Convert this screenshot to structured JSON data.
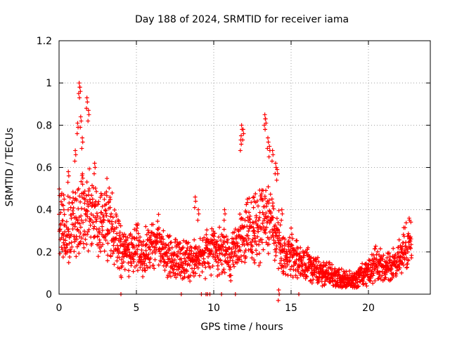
{
  "chart_data": {
    "type": "scatter",
    "title": "Day 188 of 2024, SRMTID for receiver iama",
    "xlabel": "GPS time / hours",
    "ylabel": "SRMTID / TECUs",
    "xlim": [
      0,
      24
    ],
    "ylim": [
      0,
      1.2
    ],
    "xticks": [
      0,
      5,
      10,
      15,
      20
    ],
    "xtick_labels": [
      "0",
      "5",
      "10",
      "15",
      "20"
    ],
    "yticks": [
      0,
      0.2,
      0.4,
      0.6,
      0.8,
      1,
      1.2
    ],
    "ytick_labels": [
      "0",
      "0.2",
      "0.4",
      "0.6",
      "0.8",
      "1",
      "1.2"
    ],
    "grid": true,
    "marker": "+",
    "color": "#ff0000",
    "trend": [
      [
        0.0,
        0.35
      ],
      [
        0.5,
        0.3
      ],
      [
        1.0,
        0.33
      ],
      [
        1.5,
        0.4
      ],
      [
        2.0,
        0.37
      ],
      [
        2.5,
        0.32
      ],
      [
        3.0,
        0.36
      ],
      [
        3.5,
        0.3
      ],
      [
        4.0,
        0.2
      ],
      [
        4.5,
        0.2
      ],
      [
        5.0,
        0.22
      ],
      [
        5.5,
        0.2
      ],
      [
        6.0,
        0.24
      ],
      [
        6.5,
        0.27
      ],
      [
        7.0,
        0.18
      ],
      [
        7.5,
        0.17
      ],
      [
        8.0,
        0.16
      ],
      [
        8.5,
        0.17
      ],
      [
        9.0,
        0.18
      ],
      [
        9.5,
        0.19
      ],
      [
        10.0,
        0.2
      ],
      [
        10.5,
        0.22
      ],
      [
        11.0,
        0.17
      ],
      [
        11.5,
        0.22
      ],
      [
        12.0,
        0.28
      ],
      [
        12.5,
        0.3
      ],
      [
        13.0,
        0.32
      ],
      [
        13.5,
        0.38
      ],
      [
        14.0,
        0.3
      ],
      [
        14.5,
        0.18
      ],
      [
        15.0,
        0.2
      ],
      [
        15.5,
        0.17
      ],
      [
        16.0,
        0.14
      ],
      [
        16.5,
        0.12
      ],
      [
        17.0,
        0.1
      ],
      [
        17.5,
        0.09
      ],
      [
        18.0,
        0.07
      ],
      [
        18.5,
        0.06
      ],
      [
        19.0,
        0.06
      ],
      [
        19.5,
        0.08
      ],
      [
        20.0,
        0.1
      ],
      [
        20.5,
        0.14
      ],
      [
        21.0,
        0.12
      ],
      [
        21.5,
        0.13
      ],
      [
        22.0,
        0.17
      ],
      [
        22.5,
        0.23
      ],
      [
        22.8,
        0.26
      ]
    ],
    "spikes": [
      {
        "x": 0.3,
        "y": 0.47
      },
      {
        "x": 0.6,
        "y": 0.58
      },
      {
        "x": 1.05,
        "y": 0.68
      },
      {
        "x": 1.2,
        "y": 0.81
      },
      {
        "x": 1.3,
        "y": 1.0
      },
      {
        "x": 1.35,
        "y": 0.98
      },
      {
        "x": 1.4,
        "y": 0.84
      },
      {
        "x": 1.5,
        "y": 0.74
      },
      {
        "x": 1.8,
        "y": 0.93
      },
      {
        "x": 1.9,
        "y": 0.87
      },
      {
        "x": 2.3,
        "y": 0.62
      },
      {
        "x": 8.8,
        "y": 0.46
      },
      {
        "x": 9.0,
        "y": 0.4
      },
      {
        "x": 10.7,
        "y": 0.4
      },
      {
        "x": 11.8,
        "y": 0.8
      },
      {
        "x": 11.9,
        "y": 0.78
      },
      {
        "x": 11.75,
        "y": 0.73
      },
      {
        "x": 12.6,
        "y": 0.46
      },
      {
        "x": 13.3,
        "y": 0.85
      },
      {
        "x": 13.35,
        "y": 0.83
      },
      {
        "x": 13.5,
        "y": 0.74
      },
      {
        "x": 13.6,
        "y": 0.7
      },
      {
        "x": 13.8,
        "y": 0.68
      },
      {
        "x": 14.0,
        "y": 0.62
      },
      {
        "x": 14.1,
        "y": 0.59
      },
      {
        "x": 14.4,
        "y": 0.4
      },
      {
        "x": 14.2,
        "y": 0.02
      }
    ],
    "zero_points": [
      4.0,
      7.9,
      9.2,
      9.5,
      9.6,
      9.75,
      10.5,
      11.4,
      15.5
    ]
  }
}
